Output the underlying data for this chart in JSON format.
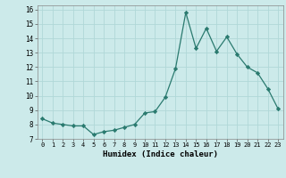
{
  "x": [
    0,
    1,
    2,
    3,
    4,
    5,
    6,
    7,
    8,
    9,
    10,
    11,
    12,
    13,
    14,
    15,
    16,
    17,
    18,
    19,
    20,
    21,
    22,
    23
  ],
  "y": [
    8.4,
    8.1,
    8.0,
    7.9,
    7.9,
    7.3,
    7.5,
    7.6,
    7.8,
    8.0,
    8.8,
    8.9,
    9.9,
    11.9,
    15.8,
    13.3,
    14.7,
    13.1,
    14.1,
    12.9,
    12.0,
    11.6,
    10.5,
    9.1
  ],
  "line_color": "#2a7a6f",
  "marker": "D",
  "marker_size": 2.2,
  "bg_color": "#cceaea",
  "grid_color": "#b0d8d8",
  "xlabel": "Humidex (Indice chaleur)",
  "ylim": [
    7,
    16.3
  ],
  "xlim": [
    -0.5,
    23.5
  ],
  "yticks": [
    7,
    8,
    9,
    10,
    11,
    12,
    13,
    14,
    15,
    16
  ],
  "xticks": [
    0,
    1,
    2,
    3,
    4,
    5,
    6,
    7,
    8,
    9,
    10,
    11,
    12,
    13,
    14,
    15,
    16,
    17,
    18,
    19,
    20,
    21,
    22,
    23
  ],
  "xtick_labels": [
    "0",
    "1",
    "2",
    "3",
    "4",
    "5",
    "6",
    "7",
    "8",
    "9",
    "10",
    "11",
    "12",
    "13",
    "14",
    "15",
    "16",
    "17",
    "18",
    "19",
    "20",
    "21",
    "22",
    "23"
  ]
}
